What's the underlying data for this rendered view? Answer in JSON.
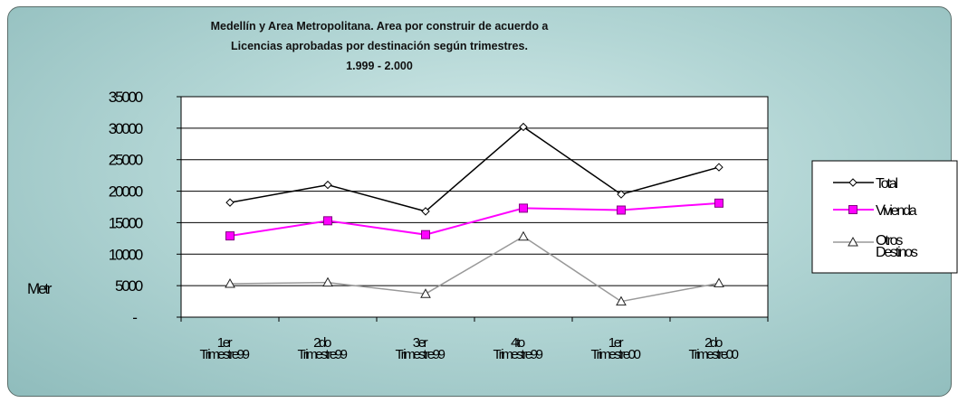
{
  "chart_data": {
    "type": "line",
    "title_lines": [
      "Medellín y Area Metropolitana. Area por construir de acuerdo a",
      "Licencias aprobadas por destinación según trimestres.",
      "1.999 - 2.000"
    ],
    "ylabel": "Metr",
    "ylim": [
      0,
      35000
    ],
    "yticks": [
      "-",
      "5000",
      "10000",
      "15000",
      "20000",
      "25000",
      "30000",
      "35000"
    ],
    "categories": [
      {
        "top": "1er",
        "bottom": "Trimestre99"
      },
      {
        "top": "2do",
        "bottom": "Trimestre99"
      },
      {
        "top": "3er",
        "bottom": "Trimestre99"
      },
      {
        "top": "4to",
        "bottom": "Trimestre99"
      },
      {
        "top": "1er",
        "bottom": "Trimestre00"
      },
      {
        "top": "2do",
        "bottom": "Trimestre00"
      }
    ],
    "series": [
      {
        "name": "Total",
        "values": [
          18200,
          21000,
          16800,
          30200,
          19500,
          23800
        ],
        "color": "#000000",
        "marker": "diamond"
      },
      {
        "name": "Vivienda",
        "values": [
          12900,
          15300,
          13100,
          17300,
          17000,
          18100
        ],
        "color": "#ff00ff",
        "marker": "square"
      },
      {
        "name": "Otros Destinos",
        "values": [
          5300,
          5500,
          3700,
          12800,
          2500,
          5400
        ],
        "color": "#999999",
        "marker": "triangle"
      }
    ],
    "legend_labels": [
      [
        "Total"
      ],
      [
        "Vivienda"
      ],
      [
        "Otros",
        "Destinos"
      ]
    ],
    "grid": true,
    "legend_position": "right"
  }
}
